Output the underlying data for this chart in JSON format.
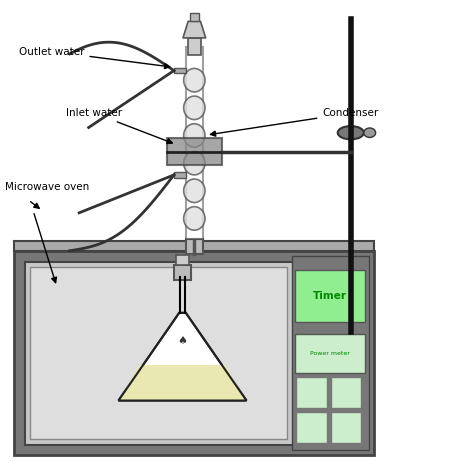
{
  "background_color": "#ffffff",
  "labels": {
    "outlet_water": "Outlet water",
    "inlet_water": "Inlet water",
    "microwave_oven": "Microwave oven",
    "condenser": "Condenser",
    "timer": "Timer",
    "power_meter": "Power meter"
  },
  "colors": {
    "oven_body_dark": "#444444",
    "oven_body_mid": "#777777",
    "oven_body_light": "#aaaaaa",
    "oven_interior": "#cccccc",
    "oven_top": "#aaaaaa",
    "flask_liquid": "#e8e8b0",
    "flask_outline": "#222222",
    "tubing": "#333333",
    "timer_bg": "#90ee90",
    "timer_text": "#008800",
    "power_bg": "#cceecc",
    "power_text": "#008800",
    "button_bg": "#cceecc",
    "stand_rod": "#111111",
    "label_text": "#000000",
    "arrow_color": "#000000"
  }
}
